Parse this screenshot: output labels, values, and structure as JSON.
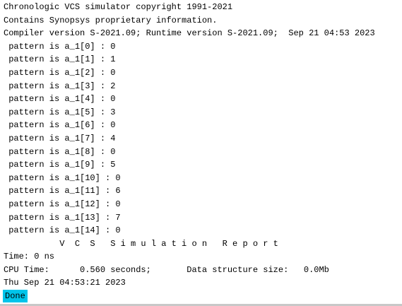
{
  "terminal": {
    "lines": [
      "Chronologic VCS simulator copyright 1991-2021",
      "Contains Synopsys proprietary information.",
      "Compiler version S-2021.09; Runtime version S-2021.09;  Sep 21 04:53 2023",
      " pattern is a_1[0] : 0",
      " pattern is a_1[1] : 1",
      " pattern is a_1[2] : 0",
      " pattern is a_1[3] : 2",
      " pattern is a_1[4] : 0",
      " pattern is a_1[5] : 3",
      " pattern is a_1[6] : 0",
      " pattern is a_1[7] : 4",
      " pattern is a_1[8] : 0",
      " pattern is a_1[9] : 5",
      " pattern is a_1[10] : 0",
      " pattern is a_1[11] : 6",
      " pattern is a_1[12] : 0",
      " pattern is a_1[13] : 7",
      " pattern is a_1[14] : 0",
      "           V  C  S   S i m u l a t i o n   R e p o r t",
      "Time: 0 ns",
      "CPU Time:      0.560 seconds;       Data structure size:   0.0Mb",
      "Thu Sep 21 04:53:21 2023"
    ],
    "status": "Done"
  }
}
